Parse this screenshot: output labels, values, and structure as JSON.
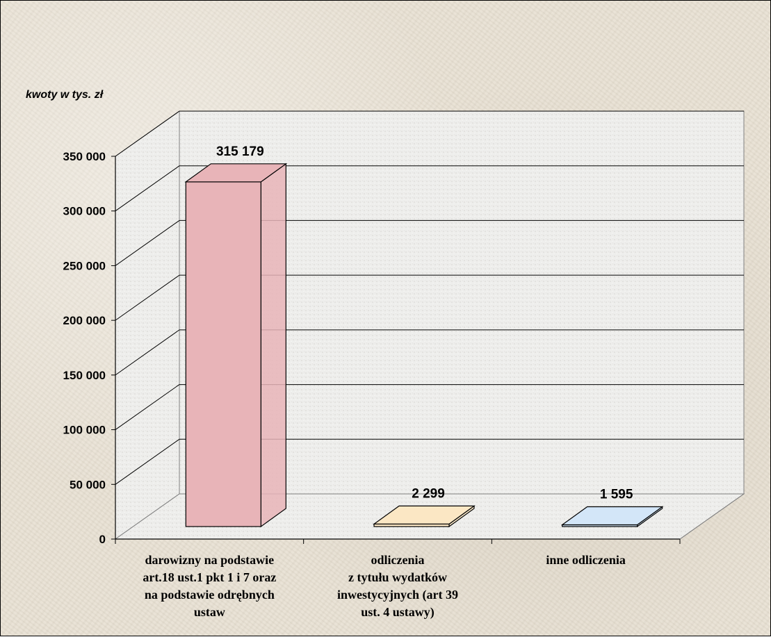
{
  "chart_data": {
    "type": "bar",
    "unit_label": "kwoty w tys. zł",
    "categories": [
      [
        "darowizny na podstawie",
        "art.18 ust.1 pkt 1 i 7 oraz",
        "na podstawie odrębnych",
        "ustaw"
      ],
      [
        "odliczenia",
        "z tytułu wydatków",
        "inwestycyjnych (art 39",
        "ust. 4 ustawy)"
      ],
      [
        "inne odliczenia"
      ]
    ],
    "values": [
      315179,
      2299,
      1595
    ],
    "value_labels": [
      "315 179",
      "2 299",
      "1 595"
    ],
    "colors": [
      "#e8b4b8",
      "#fbe7c4",
      "#d3e6f8"
    ],
    "ylim": [
      0,
      350000
    ],
    "yticks": [
      0,
      50000,
      100000,
      150000,
      200000,
      250000,
      300000,
      350000
    ],
    "ytick_labels": [
      "0",
      "50 000",
      "100 000",
      "150 000",
      "200 000",
      "250 000",
      "300 000",
      "350 000"
    ],
    "grid": true,
    "legend": "none"
  }
}
